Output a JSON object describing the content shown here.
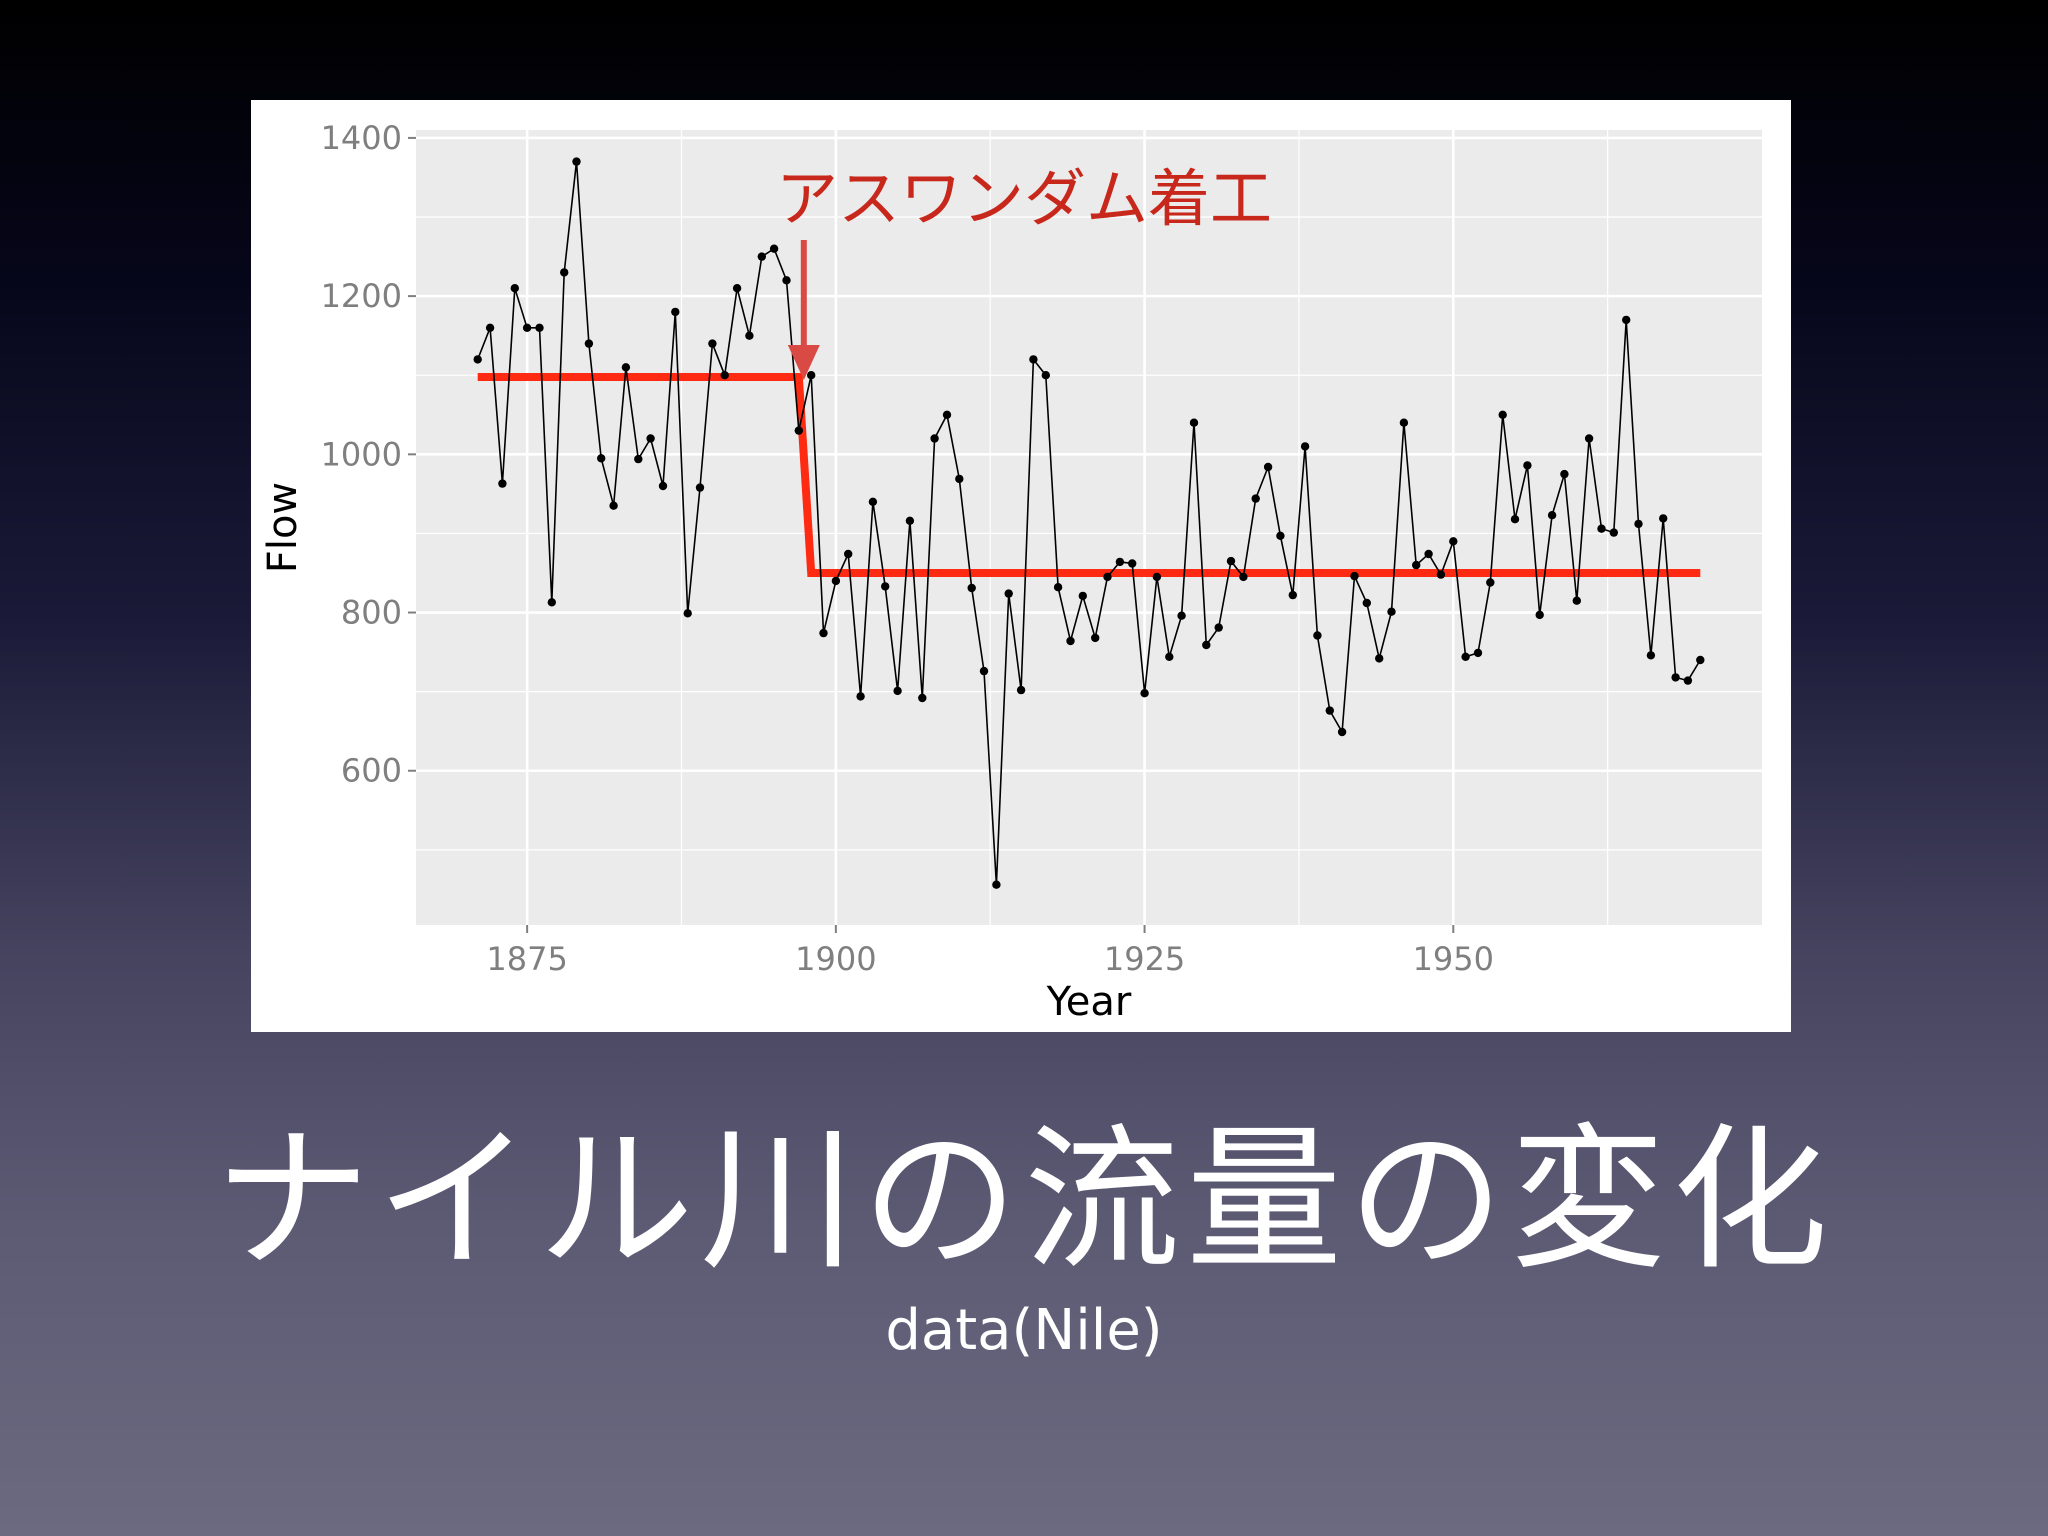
{
  "slide": {
    "title": "ナイル川の流量の変化",
    "subtitle": "data(Nile)"
  },
  "colors": {
    "panel_bg": "#ebebeb",
    "grid": "#ffffff",
    "series": "#000000",
    "fit_line": "#ff2a12",
    "annotation": "#c8281c",
    "arrow": "#d94a44",
    "tick_text": "#7f7f7f"
  },
  "chart_data": {
    "type": "line",
    "title": "",
    "xlabel": "Year",
    "ylabel": "Flow",
    "xlim": [
      1866,
      1975
    ],
    "ylim": [
      405,
      1410
    ],
    "xticks": [
      1875,
      1900,
      1925,
      1950
    ],
    "yticks": [
      600,
      800,
      1000,
      1200,
      1400
    ],
    "grid": true,
    "legend": "none",
    "series": [
      {
        "x": [
          1871,
          1872,
          1873,
          1874,
          1875,
          1876,
          1877,
          1878,
          1879,
          1880,
          1881,
          1882,
          1883,
          1884,
          1885,
          1886,
          1887,
          1888,
          1889,
          1890,
          1891,
          1892,
          1893,
          1894,
          1895,
          1896,
          1897,
          1898,
          1899,
          1900,
          1901,
          1902,
          1903,
          1904,
          1905,
          1906,
          1907,
          1908,
          1909,
          1910,
          1911,
          1912,
          1913,
          1914,
          1915,
          1916,
          1917,
          1918,
          1919,
          1920,
          1921,
          1922,
          1923,
          1924,
          1925,
          1926,
          1927,
          1928,
          1929,
          1930,
          1931,
          1932,
          1933,
          1934,
          1935,
          1936,
          1937,
          1938,
          1939,
          1940,
          1941,
          1942,
          1943,
          1944,
          1945,
          1946,
          1947,
          1948,
          1949,
          1950,
          1951,
          1952,
          1953,
          1954,
          1955,
          1956,
          1957,
          1958,
          1959,
          1960,
          1961,
          1962,
          1963,
          1964,
          1965,
          1966,
          1967,
          1968,
          1969,
          1970
        ],
        "values": [
          1120,
          1160,
          963,
          1210,
          1160,
          1160,
          813,
          1230,
          1370,
          1140,
          995,
          935,
          1110,
          994,
          1020,
          960,
          1180,
          799,
          958,
          1140,
          1100,
          1210,
          1150,
          1250,
          1260,
          1220,
          1030,
          1100,
          774,
          840,
          874,
          694,
          940,
          833,
          701,
          916,
          692,
          1020,
          1050,
          969,
          831,
          726,
          456,
          824,
          702,
          1120,
          1100,
          832,
          764,
          821,
          768,
          845,
          864,
          862,
          698,
          845,
          744,
          796,
          1040,
          759,
          781,
          865,
          845,
          944,
          984,
          897,
          822,
          1010,
          771,
          676,
          649,
          846,
          812,
          742,
          801,
          1040,
          860,
          874,
          848,
          890,
          744,
          749,
          838,
          1050,
          918,
          986,
          797,
          923,
          975,
          815,
          1020,
          906,
          901,
          1170,
          912,
          746,
          919,
          718,
          714,
          740
        ]
      }
    ],
    "fit_line": {
      "segments": [
        {
          "x": [
            1871,
            1897
          ],
          "values": [
            1097.75,
            1097.75
          ]
        },
        {
          "x": [
            1897,
            1898
          ],
          "values": [
            1097.75,
            849.97
          ]
        },
        {
          "x": [
            1898,
            1970
          ],
          "values": [
            849.97,
            849.97
          ]
        }
      ]
    },
    "annotations": [
      {
        "text": "アスワンダム着工",
        "x": 1897
      }
    ]
  }
}
